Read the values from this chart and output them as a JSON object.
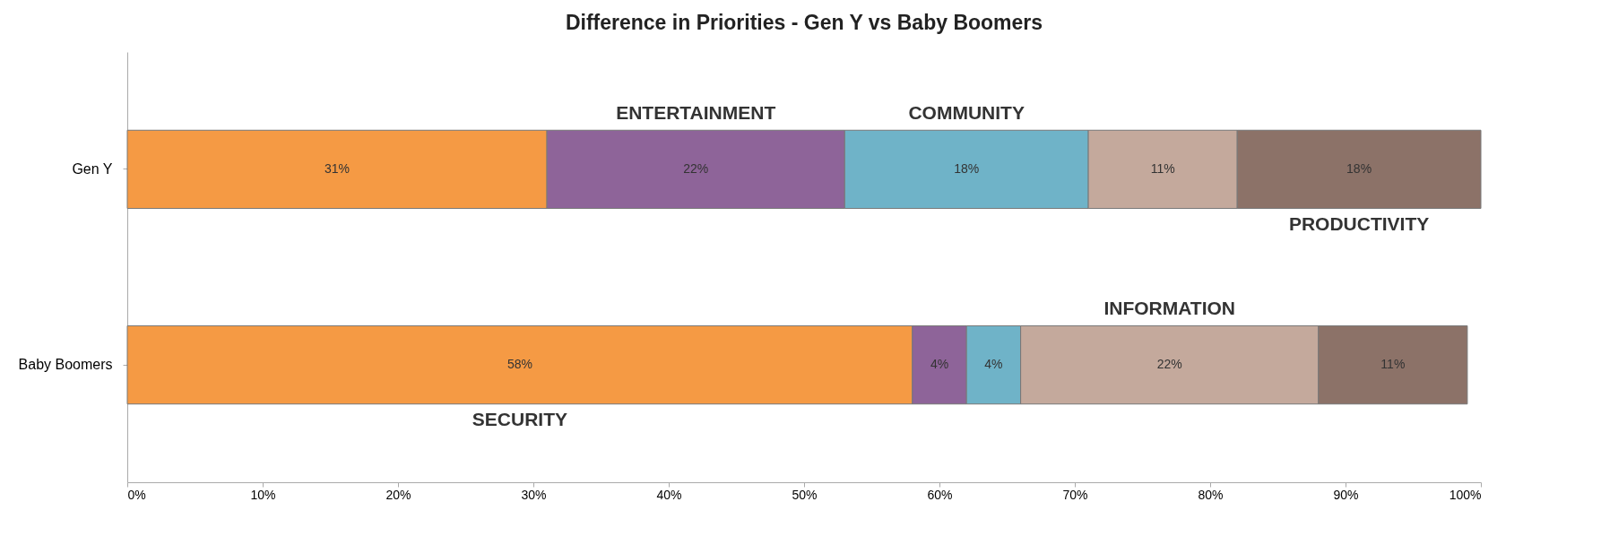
{
  "chart_data": {
    "type": "bar",
    "title": "Difference in Priorities - Gen Y vs Baby Boomers",
    "orientation": "horizontal",
    "stacked": true,
    "categories": [
      "Gen Y",
      "Baby Boomers"
    ],
    "series": [
      {
        "name": "SECURITY",
        "color": "#f59a44",
        "values": [
          31,
          58
        ],
        "value_labels": [
          "31%",
          "58%"
        ]
      },
      {
        "name": "ENTERTAINMENT",
        "color": "#8e6499",
        "values": [
          22,
          4
        ],
        "value_labels": [
          "22%",
          "4%"
        ]
      },
      {
        "name": "COMMUNITY",
        "color": "#6fb3c8",
        "values": [
          18,
          4
        ],
        "value_labels": [
          "18%",
          "4%"
        ]
      },
      {
        "name": "INFORMATION",
        "color": "#c4a99c",
        "values": [
          11,
          22
        ],
        "value_labels": [
          "11%",
          "22%"
        ]
      },
      {
        "name": "PRODUCTIVITY",
        "color": "#8c7268",
        "values": [
          18,
          11
        ],
        "value_labels": [
          "18%",
          "11%"
        ]
      }
    ],
    "xlim": [
      0,
      100
    ],
    "xticks": [
      {
        "value": 0,
        "label": "0%"
      },
      {
        "value": 10,
        "label": "10%"
      },
      {
        "value": 20,
        "label": "20%"
      },
      {
        "value": 30,
        "label": "30%"
      },
      {
        "value": 40,
        "label": "40%"
      },
      {
        "value": 50,
        "label": "50%"
      },
      {
        "value": 60,
        "label": "60%"
      },
      {
        "value": 70,
        "label": "70%"
      },
      {
        "value": 80,
        "label": "80%"
      },
      {
        "value": 90,
        "label": "90%"
      },
      {
        "value": 100,
        "label": "100%"
      }
    ],
    "grid": false,
    "legend": false
  }
}
